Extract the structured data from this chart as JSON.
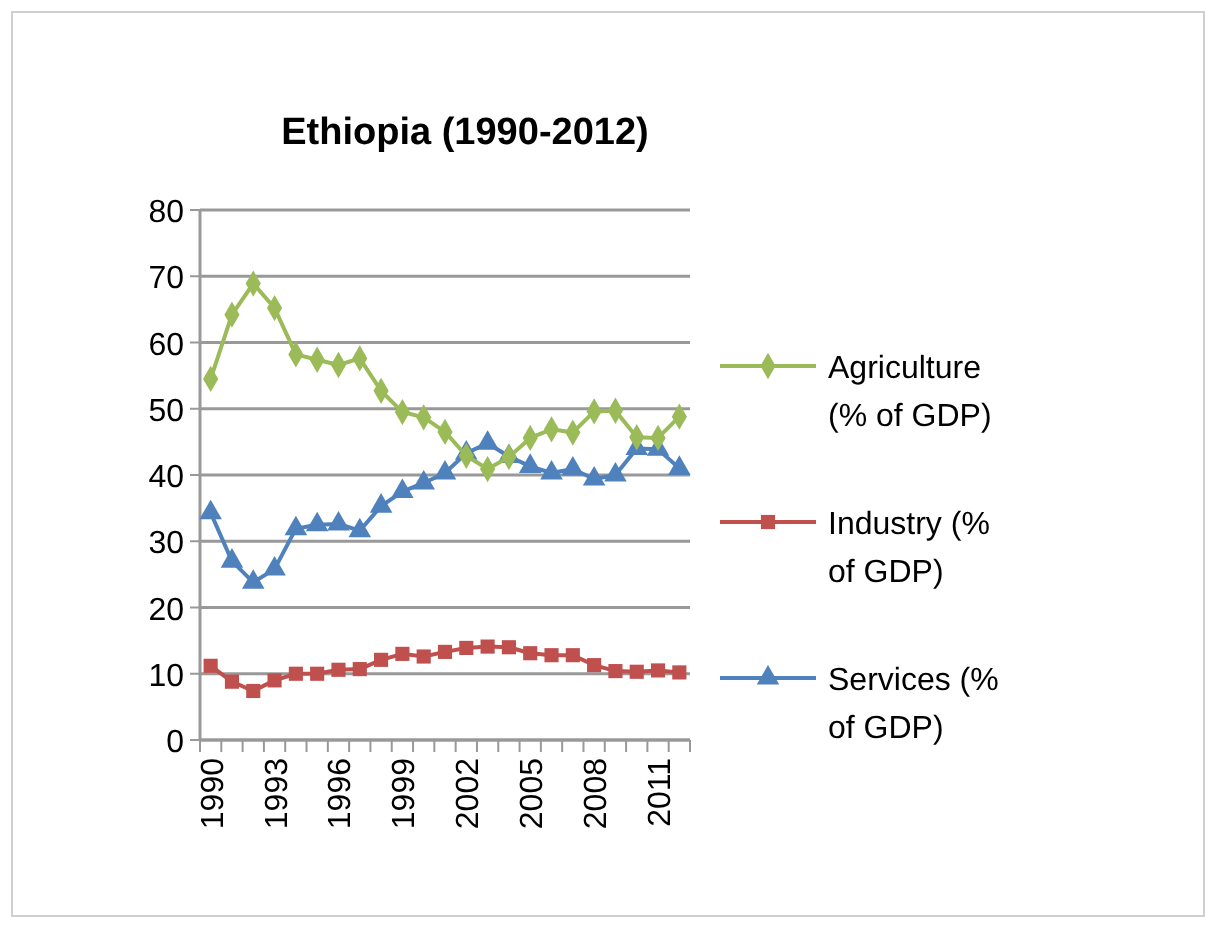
{
  "chart_data": {
    "type": "line",
    "title": "Ethiopia (1990-2012)",
    "categories": [
      "1990",
      null,
      null,
      "1993",
      null,
      null,
      "1996",
      null,
      null,
      "1999",
      null,
      null,
      "2002",
      null,
      null,
      "2005",
      null,
      null,
      "2008",
      null,
      null,
      "2011",
      null
    ],
    "series": [
      {
        "name": "Agriculture (% of GDP)",
        "color": "#9bbb59",
        "marker": "diamond",
        "values": [
          54.5,
          64.2,
          68.9,
          65.2,
          58.2,
          57.4,
          56.6,
          57.6,
          52.7,
          49.5,
          48.7,
          46.5,
          42.9,
          40.9,
          42.7,
          45.6,
          46.9,
          46.4,
          49.6,
          49.7,
          45.7,
          45.6,
          48.8
        ]
      },
      {
        "name": "Industry (% of GDP)",
        "color": "#c0504d",
        "marker": "square",
        "values": [
          11.2,
          8.8,
          7.4,
          9.0,
          10.0,
          10.0,
          10.6,
          10.7,
          12.1,
          13.0,
          12.6,
          13.3,
          13.9,
          14.1,
          14.0,
          13.1,
          12.8,
          12.8,
          11.3,
          10.4,
          10.3,
          10.5,
          10.2
        ]
      },
      {
        "name": "Services (% of GDP)",
        "color": "#4f81bd",
        "marker": "triangle",
        "values": [
          34.3,
          27.0,
          23.8,
          25.8,
          31.9,
          32.5,
          32.6,
          31.6,
          35.3,
          37.5,
          38.8,
          40.3,
          43.3,
          44.8,
          42.8,
          41.3,
          40.3,
          40.9,
          39.4,
          40.0,
          44.0,
          43.9,
          41.0
        ]
      }
    ],
    "ylim": [
      0,
      80
    ],
    "yticks": [
      0,
      10,
      20,
      30,
      40,
      50,
      60,
      70,
      80
    ],
    "grid": "y",
    "legend": "right",
    "line_style": "solid"
  }
}
